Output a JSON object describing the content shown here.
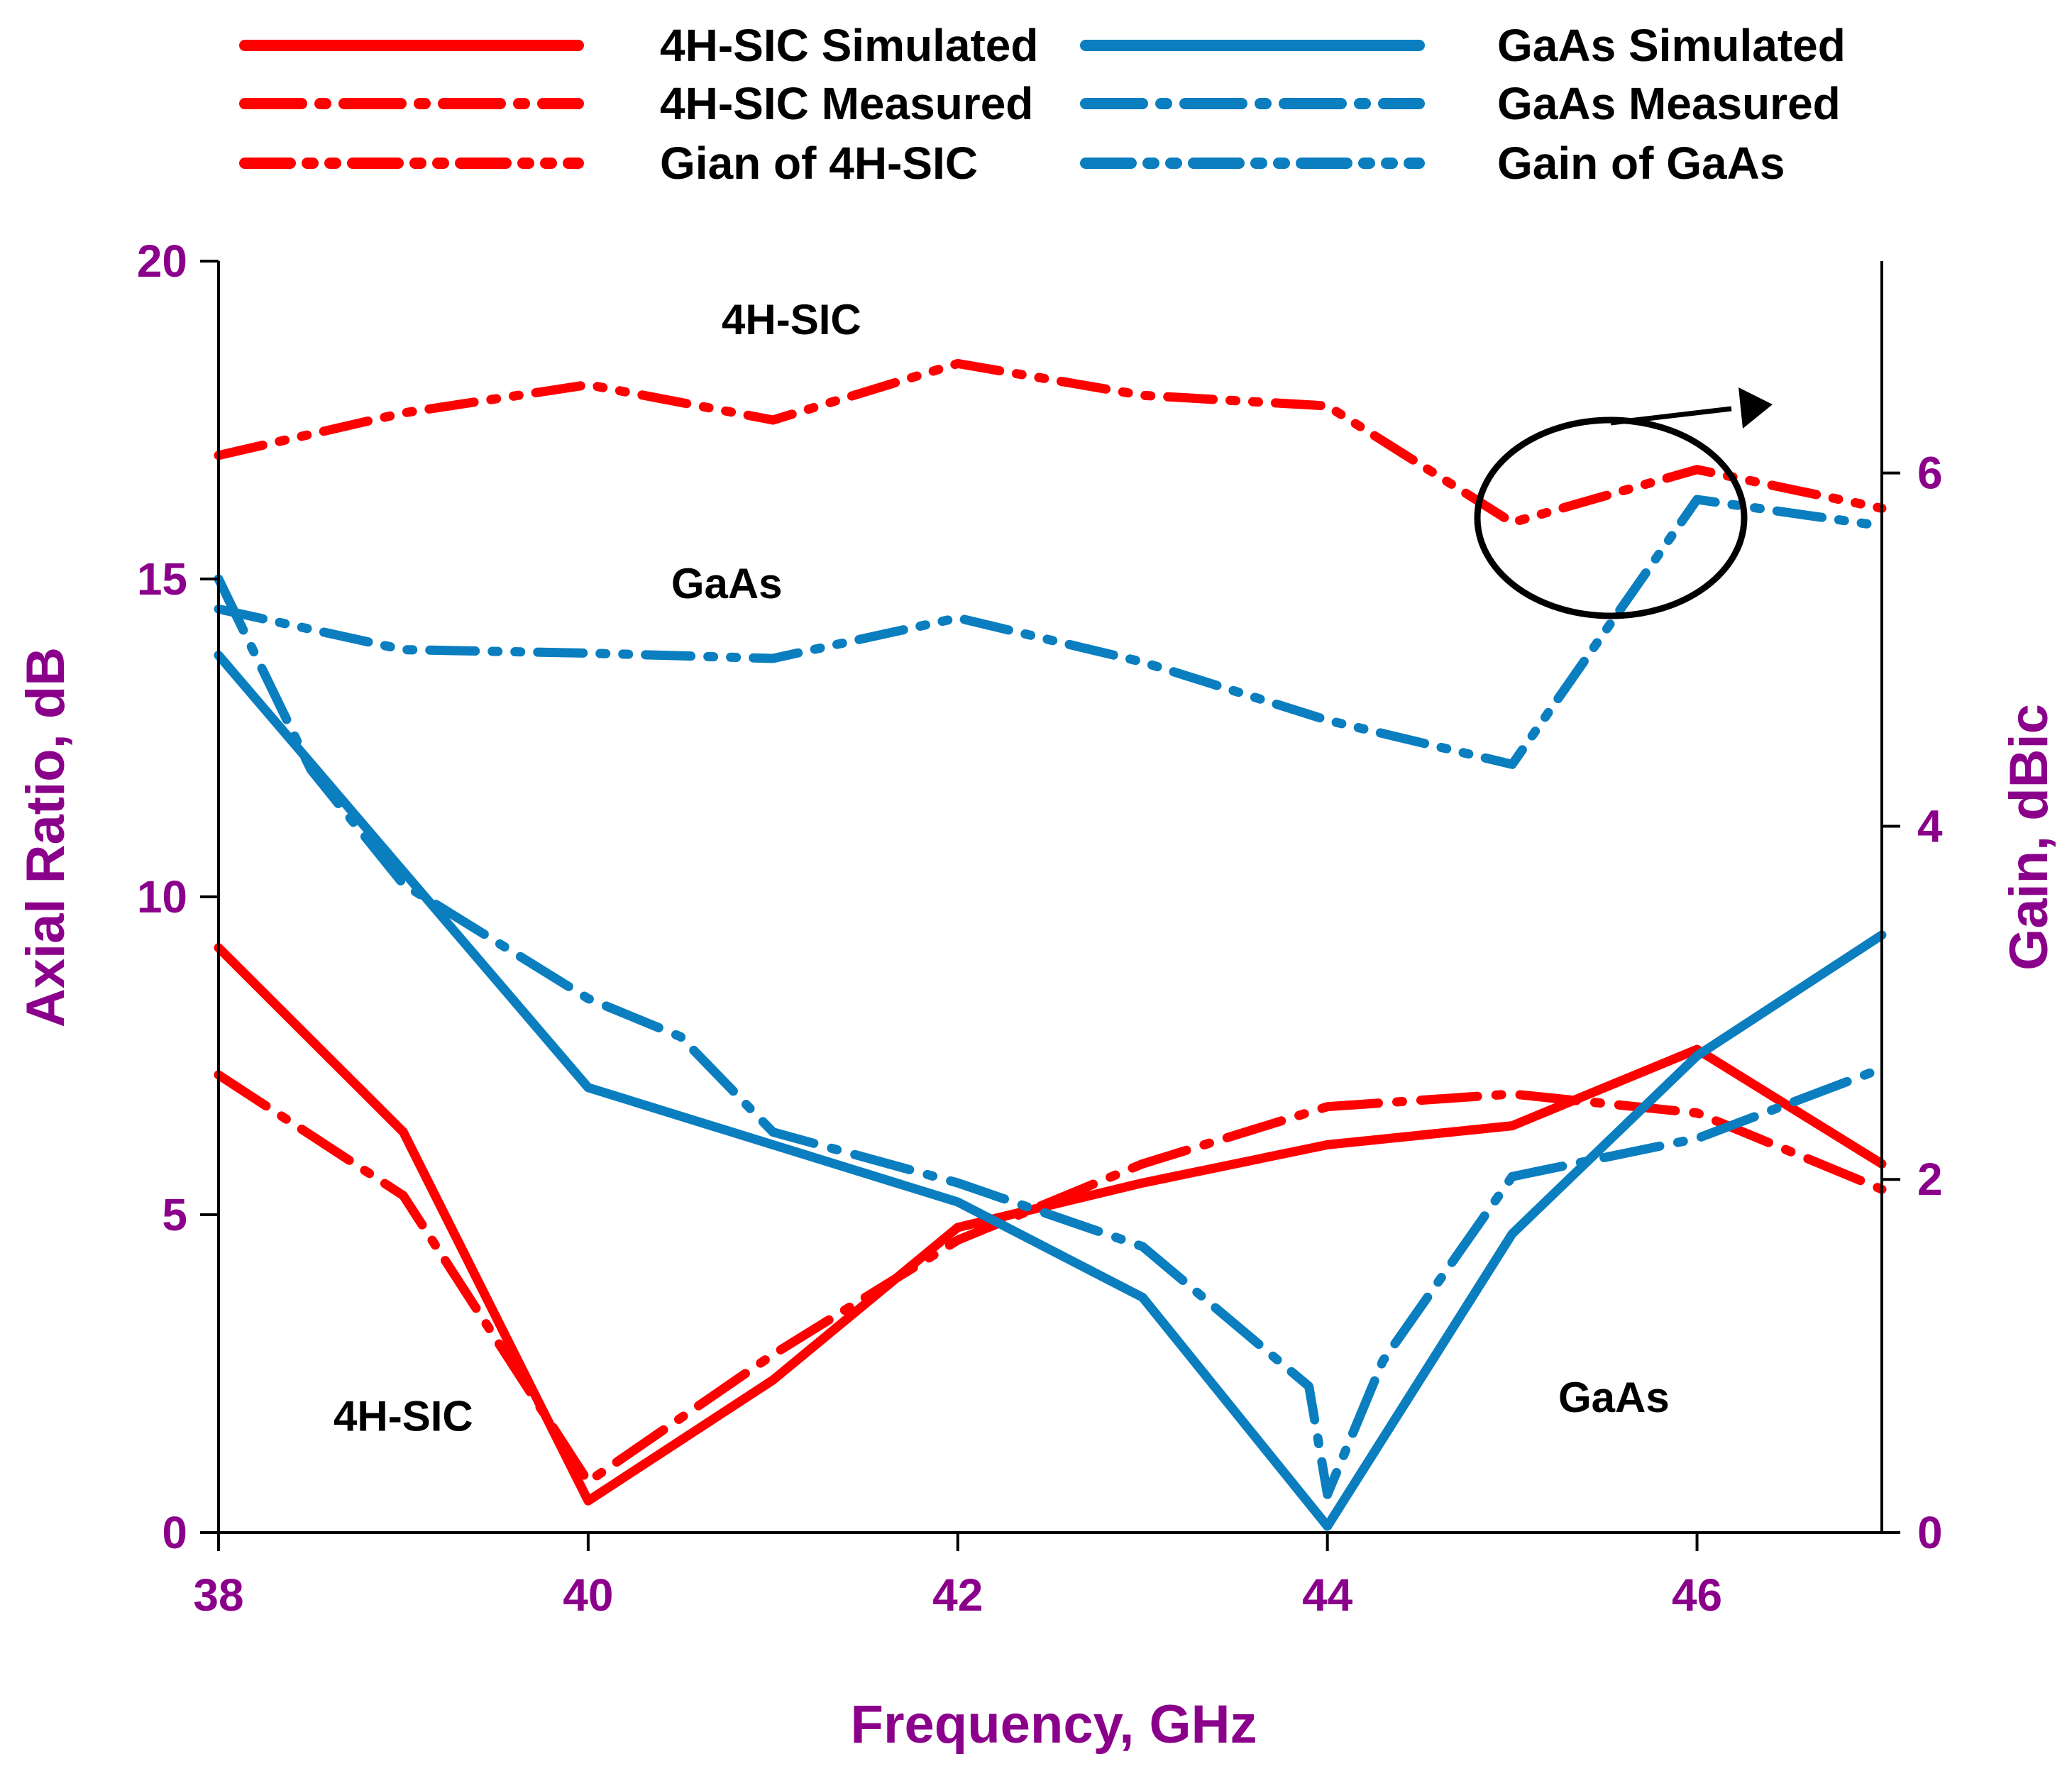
{
  "chart_data": {
    "type": "line",
    "xlabel": "Frequency, GHz",
    "ylabel_left": "Axial Ratio, dB",
    "ylabel_right": "Gain, dBic",
    "xlim": [
      38,
      47
    ],
    "ylim_left": [
      0,
      20
    ],
    "ylim_right": [
      0,
      7.2
    ],
    "x_ticks": [
      "38",
      "40",
      "42",
      "44",
      "46"
    ],
    "y_ticks_left": [
      "0",
      "5",
      "10",
      "15",
      "20"
    ],
    "y_ticks_right": [
      "0",
      "2",
      "4",
      "6"
    ],
    "colors": {
      "sic": "#ff0000",
      "gaas": "#0a7ebf",
      "axis_text": "#8b008b",
      "axis": "#000000"
    },
    "series": [
      {
        "name": "4H-SIC Simulated",
        "axis": "left",
        "color": "#ff0000",
        "dash": "solid",
        "x": [
          38,
          39,
          40,
          41,
          42,
          43,
          44,
          45,
          46,
          47
        ],
        "values": [
          9.2,
          6.3,
          0.5,
          2.4,
          4.8,
          5.5,
          6.1,
          6.4,
          7.6,
          5.8
        ]
      },
      {
        "name": "4H-SIC Measured",
        "axis": "left",
        "color": "#ff0000",
        "dash": "dashdot",
        "x": [
          38,
          39,
          40,
          41,
          42,
          43,
          44,
          45,
          46,
          47
        ],
        "values": [
          7.2,
          5.3,
          0.8,
          2.8,
          4.6,
          5.8,
          6.7,
          6.9,
          6.6,
          5.4
        ]
      },
      {
        "name": "Gian of 4H-SIC",
        "axis": "right",
        "color": "#ff0000",
        "dash": "dashdotdot",
        "x": [
          38,
          39,
          40,
          41,
          42,
          43,
          44,
          45,
          46,
          47
        ],
        "values": [
          6.1,
          6.34,
          6.5,
          6.3,
          6.62,
          6.44,
          6.38,
          5.72,
          6.02,
          5.8
        ]
      },
      {
        "name": "GaAs Simulated",
        "axis": "left",
        "color": "#0a7ebf",
        "dash": "solid",
        "x": [
          38,
          39,
          40,
          41,
          42,
          43,
          44,
          45,
          46,
          47
        ],
        "values": [
          13.8,
          10.4,
          7.0,
          6.1,
          5.2,
          3.7,
          0.1,
          4.7,
          7.5,
          9.4
        ]
      },
      {
        "name": "GaAs Measured",
        "axis": "left",
        "color": "#0a7ebf",
        "dash": "dashdot",
        "x": [
          38,
          38.5,
          39,
          40,
          40.5,
          41,
          42,
          43,
          43.9,
          44,
          44.3,
          45,
          46,
          47
        ],
        "values": [
          15.0,
          12.0,
          10.2,
          8.4,
          7.8,
          6.3,
          5.5,
          4.5,
          2.3,
          0.6,
          2.7,
          5.6,
          6.2,
          7.3
        ]
      },
      {
        "name": "Gain of GaAs",
        "axis": "right",
        "color": "#0a7ebf",
        "dash": "dashdotdot",
        "x": [
          38,
          39,
          40,
          41,
          42,
          43,
          44,
          45,
          45.5,
          46,
          47
        ],
        "values": [
          5.23,
          5.0,
          4.98,
          4.95,
          5.18,
          4.93,
          4.6,
          4.35,
          5.1,
          5.85,
          5.7
        ]
      }
    ],
    "annotations": [
      {
        "text": "4H-SIC",
        "x": 41.1,
        "y": 18.85,
        "axis": "left"
      },
      {
        "text": "GaAs",
        "x": 40.75,
        "y": 14.7,
        "axis": "left"
      },
      {
        "text": "4H-SIC",
        "x": 39.0,
        "y": 1.6,
        "axis": "left"
      },
      {
        "text": "GaAs",
        "x": 45.55,
        "y": 1.9,
        "axis": "left"
      }
    ],
    "callout": {
      "shape": "ellipse with arrow",
      "points_to": "right axis (Gain)"
    }
  }
}
